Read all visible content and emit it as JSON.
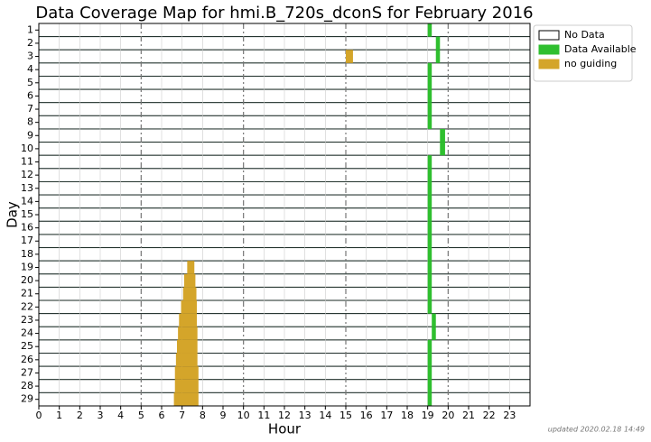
{
  "chart_data": {
    "type": "broken-bar",
    "title": "Data Coverage Map for hmi.B_720s_dconS for February 2016",
    "x_label": "Hour",
    "y_label": "Day",
    "footnote": "updated 2020.02.18 14:49",
    "categories": [
      "1",
      "2",
      "3",
      "4",
      "5",
      "6",
      "7",
      "8",
      "9",
      "10",
      "11",
      "12",
      "13",
      "14",
      "15",
      "16",
      "17",
      "18",
      "19",
      "20",
      "21",
      "22",
      "23",
      "24",
      "25",
      "26",
      "27",
      "28",
      "29"
    ],
    "xlim": [
      0,
      24
    ],
    "xticks": [
      0,
      1,
      2,
      3,
      4,
      5,
      6,
      7,
      8,
      9,
      10,
      11,
      12,
      13,
      14,
      15,
      16,
      17,
      18,
      19,
      20,
      21,
      22,
      23
    ],
    "grid": true,
    "legend": "outside-upper-right",
    "series": [
      {
        "name": "No Data",
        "color": "#ffffff"
      },
      {
        "name": "Data Available",
        "color": "#2fbf2f",
        "values": [
          [
            19.0,
            19.2
          ],
          [
            19.4,
            19.6
          ],
          [
            19.4,
            19.6
          ],
          [
            19.0,
            19.2
          ],
          [
            19.0,
            19.2
          ],
          [
            19.0,
            19.2
          ],
          [
            19.0,
            19.2
          ],
          [
            19.0,
            19.2
          ],
          [
            19.6,
            19.85
          ],
          [
            19.6,
            19.85
          ],
          [
            19.0,
            19.2
          ],
          [
            19.0,
            19.2
          ],
          [
            19.0,
            19.2
          ],
          [
            19.0,
            19.2
          ],
          [
            19.0,
            19.2
          ],
          [
            19.0,
            19.2
          ],
          [
            19.0,
            19.2
          ],
          [
            19.0,
            19.2
          ],
          [
            19.0,
            19.2
          ],
          [
            19.0,
            19.2
          ],
          [
            19.0,
            19.2
          ],
          [
            19.0,
            19.2
          ],
          [
            19.2,
            19.4
          ],
          [
            19.2,
            19.4
          ],
          [
            19.0,
            19.2
          ],
          [
            19.0,
            19.2
          ],
          [
            19.0,
            19.2
          ],
          [
            19.0,
            19.2
          ],
          [
            19.0,
            19.2
          ]
        ]
      },
      {
        "name": "no guiding",
        "color": "#d4a52a",
        "values": [
          null,
          null,
          [
            15.0,
            15.35
          ],
          null,
          null,
          null,
          null,
          null,
          null,
          null,
          null,
          null,
          null,
          null,
          null,
          null,
          null,
          null,
          [
            7.25,
            7.6
          ],
          [
            7.1,
            7.65
          ],
          [
            7.05,
            7.7
          ],
          [
            6.95,
            7.72
          ],
          [
            6.85,
            7.72
          ],
          [
            6.8,
            7.75
          ],
          [
            6.75,
            7.75
          ],
          [
            6.7,
            7.75
          ],
          [
            6.65,
            7.8
          ],
          [
            6.65,
            7.8
          ],
          [
            6.6,
            7.8
          ]
        ]
      }
    ]
  }
}
